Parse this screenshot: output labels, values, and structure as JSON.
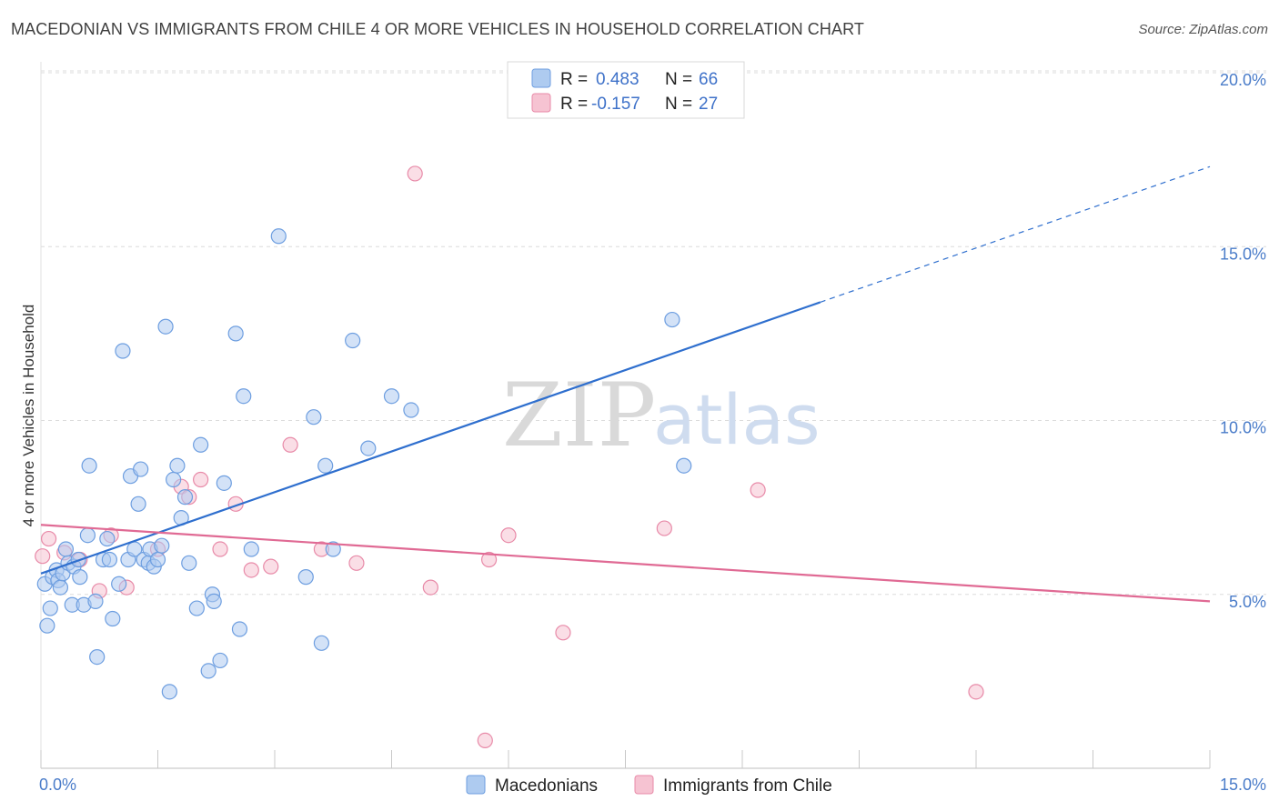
{
  "title": "MACEDONIAN VS IMMIGRANTS FROM CHILE 4 OR MORE VEHICLES IN HOUSEHOLD CORRELATION CHART",
  "source": "Source: ZipAtlas.com",
  "watermark": {
    "zip": "ZIP",
    "atlas": "atlas"
  },
  "legend": {
    "rows": [
      {
        "r_label": "R =",
        "r_value": "0.483",
        "n_label": "N =",
        "n_value": "66"
      },
      {
        "r_label": "R =",
        "r_value": "-0.157",
        "n_label": "N =",
        "n_value": "27"
      }
    ]
  },
  "colors": {
    "series1_fill": "#aecbf0",
    "series1_stroke": "#6d9ee0",
    "series1_line": "#2f6fce",
    "series2_fill": "#f6c3d2",
    "series2_stroke": "#e88aa8",
    "series2_line": "#e06a94",
    "grid": "#dcdcdc",
    "tick": "#4a7cc9"
  },
  "chart_data": {
    "type": "scatter",
    "title": "MACEDONIAN VS IMMIGRANTS FROM CHILE 4 OR MORE VEHICLES IN HOUSEHOLD CORRELATION CHART",
    "xlabel": "",
    "ylabel": "4 or more Vehicles in Household",
    "xlim": [
      0,
      15
    ],
    "ylim": [
      0,
      20
    ],
    "x_tick_labels": [
      "0.0%",
      "15.0%"
    ],
    "y_ticks": [
      5,
      10,
      15,
      20
    ],
    "y_tick_labels": [
      "5.0%",
      "10.0%",
      "15.0%",
      "20.0%"
    ],
    "grid": true,
    "legend_position": "top-center",
    "series": [
      {
        "name": "Macedonians",
        "r": 0.483,
        "n": 66,
        "trend": {
          "x0": 0,
          "y0": 5.6,
          "x1": 10.0,
          "y1": 13.4,
          "dashed_to_x": 15.0,
          "dashed_to_y": 17.3
        },
        "points": [
          [
            0.05,
            5.3
          ],
          [
            0.08,
            4.1
          ],
          [
            0.12,
            4.6
          ],
          [
            0.15,
            5.5
          ],
          [
            0.2,
            5.7
          ],
          [
            0.22,
            5.4
          ],
          [
            0.25,
            5.2
          ],
          [
            0.28,
            5.6
          ],
          [
            0.32,
            6.3
          ],
          [
            0.35,
            5.9
          ],
          [
            0.4,
            4.7
          ],
          [
            0.42,
            5.8
          ],
          [
            0.48,
            6.0
          ],
          [
            0.5,
            5.5
          ],
          [
            0.55,
            4.7
          ],
          [
            0.6,
            6.7
          ],
          [
            0.62,
            8.7
          ],
          [
            0.7,
            4.8
          ],
          [
            0.72,
            3.2
          ],
          [
            0.8,
            6.0
          ],
          [
            0.85,
            6.6
          ],
          [
            0.88,
            6.0
          ],
          [
            0.92,
            4.3
          ],
          [
            1.0,
            5.3
          ],
          [
            1.05,
            12.0
          ],
          [
            1.12,
            6.0
          ],
          [
            1.15,
            8.4
          ],
          [
            1.2,
            6.3
          ],
          [
            1.25,
            7.6
          ],
          [
            1.28,
            8.6
          ],
          [
            1.32,
            6.0
          ],
          [
            1.38,
            5.9
          ],
          [
            1.4,
            6.3
          ],
          [
            1.45,
            5.8
          ],
          [
            1.5,
            6.0
          ],
          [
            1.55,
            6.4
          ],
          [
            1.6,
            12.7
          ],
          [
            1.65,
            2.2
          ],
          [
            1.7,
            8.3
          ],
          [
            1.75,
            8.7
          ],
          [
            1.8,
            7.2
          ],
          [
            1.85,
            7.8
          ],
          [
            1.9,
            5.9
          ],
          [
            2.0,
            4.6
          ],
          [
            2.05,
            9.3
          ],
          [
            2.15,
            2.8
          ],
          [
            2.2,
            5.0
          ],
          [
            2.22,
            4.8
          ],
          [
            2.3,
            3.1
          ],
          [
            2.35,
            8.2
          ],
          [
            2.5,
            12.5
          ],
          [
            2.55,
            4.0
          ],
          [
            2.6,
            10.7
          ],
          [
            2.7,
            6.3
          ],
          [
            3.05,
            15.3
          ],
          [
            3.4,
            5.5
          ],
          [
            3.5,
            10.1
          ],
          [
            3.6,
            3.6
          ],
          [
            3.65,
            8.7
          ],
          [
            3.75,
            6.3
          ],
          [
            4.0,
            12.3
          ],
          [
            4.2,
            9.2
          ],
          [
            4.5,
            10.7
          ],
          [
            4.75,
            10.3
          ],
          [
            8.1,
            12.9
          ],
          [
            8.25,
            8.7
          ]
        ]
      },
      {
        "name": "Immigrants from Chile",
        "r": -0.157,
        "n": 27,
        "trend": {
          "x0": 0,
          "y0": 7.0,
          "x1": 15.0,
          "y1": 4.8
        },
        "points": [
          [
            0.02,
            6.1
          ],
          [
            0.3,
            6.2
          ],
          [
            0.5,
            6.0
          ],
          [
            0.75,
            5.1
          ],
          [
            0.9,
            6.7
          ],
          [
            1.1,
            5.2
          ],
          [
            1.5,
            6.3
          ],
          [
            1.8,
            8.1
          ],
          [
            1.9,
            7.8
          ],
          [
            2.05,
            8.3
          ],
          [
            2.3,
            6.3
          ],
          [
            2.5,
            7.6
          ],
          [
            2.7,
            5.7
          ],
          [
            2.95,
            5.8
          ],
          [
            3.2,
            9.3
          ],
          [
            3.6,
            6.3
          ],
          [
            4.05,
            5.9
          ],
          [
            4.8,
            17.1
          ],
          [
            5.0,
            5.2
          ],
          [
            5.7,
            0.8
          ],
          [
            5.75,
            6.0
          ],
          [
            6.0,
            6.7
          ],
          [
            6.7,
            3.9
          ],
          [
            8.0,
            6.9
          ],
          [
            9.2,
            8.0
          ],
          [
            12.0,
            2.2
          ],
          [
            0.1,
            6.6
          ]
        ]
      }
    ]
  }
}
